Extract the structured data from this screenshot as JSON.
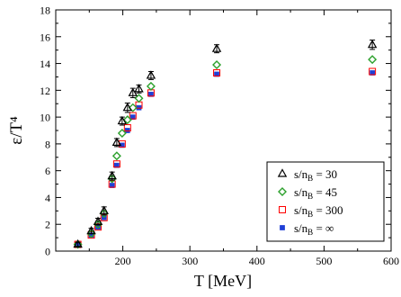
{
  "chart_data": {
    "type": "scatter",
    "title": "",
    "xlabel": "T [MeV]",
    "ylabel": "ε/T⁴",
    "xlim": [
      100,
      600
    ],
    "ylim": [
      0,
      18
    ],
    "xticks": [
      200,
      300,
      400,
      500,
      600
    ],
    "yticks": [
      0,
      2,
      4,
      6,
      8,
      10,
      12,
      14,
      16,
      18
    ],
    "grid": false,
    "legend_position": "lower-right",
    "series": [
      {
        "name_prefix": "s/n",
        "name_sub": "B",
        "name_suffix": " = 30",
        "marker": "triangle-open",
        "color": "#000000",
        "x": [
          133,
          153,
          163,
          172,
          184,
          191,
          199,
          207,
          215,
          224,
          242,
          340,
          572
        ],
        "y": [
          0.5,
          1.5,
          2.2,
          3.0,
          5.6,
          8.1,
          9.7,
          10.7,
          11.8,
          12.1,
          13.1,
          15.1,
          15.4
        ],
        "err": [
          0.15,
          0.2,
          0.25,
          0.3,
          0.3,
          0.3,
          0.3,
          0.35,
          0.35,
          0.3,
          0.3,
          0.3,
          0.35
        ]
      },
      {
        "name_prefix": "s/n",
        "name_sub": "B",
        "name_suffix": " = 45",
        "marker": "diamond-open",
        "color": "#2ca02c",
        "x": [
          133,
          153,
          163,
          172,
          184,
          191,
          199,
          207,
          215,
          224,
          242,
          340,
          572
        ],
        "y": [
          0.5,
          1.3,
          2.0,
          2.8,
          5.4,
          7.1,
          8.8,
          9.8,
          10.7,
          11.4,
          12.3,
          13.9,
          14.3
        ],
        "err": []
      },
      {
        "name_prefix": "s/n",
        "name_sub": "B",
        "name_suffix": " = 300",
        "marker": "square-open",
        "color": "#ff0000",
        "x": [
          133,
          153,
          163,
          172,
          184,
          191,
          199,
          207,
          215,
          224,
          242,
          340,
          572
        ],
        "y": [
          0.5,
          1.2,
          1.8,
          2.5,
          5.0,
          6.5,
          8.0,
          9.2,
          10.1,
          10.9,
          11.8,
          13.3,
          13.4
        ],
        "err": []
      },
      {
        "name_prefix": "s/n",
        "name_sub": "B",
        "name_suffix": " = ∞",
        "marker": "square-filled",
        "color": "#1f3fd6",
        "x": [
          133,
          153,
          163,
          172,
          184,
          191,
          199,
          207,
          215,
          224,
          242,
          340,
          572
        ],
        "y": [
          0.5,
          1.2,
          1.8,
          2.5,
          4.9,
          6.4,
          7.9,
          9.0,
          10.0,
          10.7,
          11.7,
          13.2,
          13.3
        ],
        "err": []
      }
    ]
  }
}
